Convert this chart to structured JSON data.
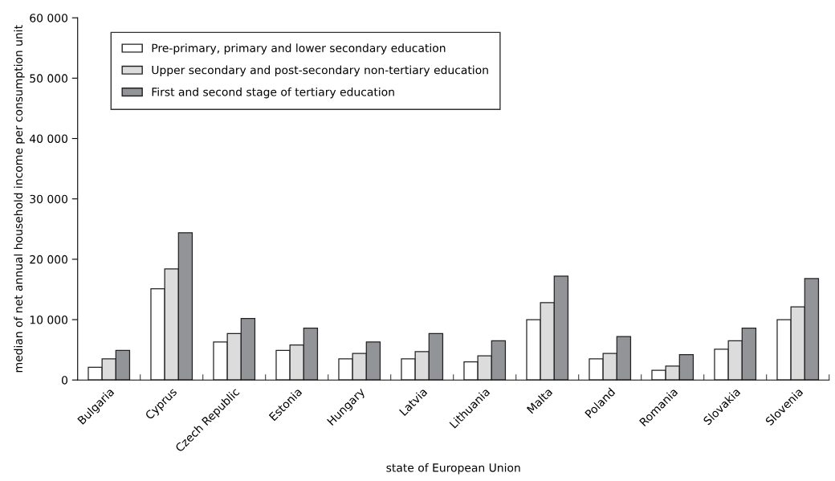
{
  "chart_data": {
    "type": "bar",
    "categories": [
      "Bulgaria",
      "Cyprus",
      "Czech Republic",
      "Estonia",
      "Hungary",
      "Latvia",
      "Lithuania",
      "Malta",
      "Poland",
      "Romania",
      "Slovakia",
      "Slovenia"
    ],
    "series": [
      {
        "name": "Pre-primary, primary and lower secondary education",
        "color": "#ffffff",
        "values": [
          2100,
          15100,
          6300,
          4900,
          3500,
          3500,
          3000,
          10000,
          3500,
          1600,
          5100,
          10000
        ]
      },
      {
        "name": "Upper secondary and post-secondary non-tertiary education",
        "color": "#dcdcdc",
        "values": [
          3500,
          18400,
          7700,
          5800,
          4400,
          4700,
          4000,
          12800,
          4400,
          2300,
          6500,
          12100
        ]
      },
      {
        "name": "First and second stage of tertiary education",
        "color": "#939498",
        "values": [
          4900,
          24400,
          10200,
          8600,
          6300,
          7700,
          6500,
          17200,
          7200,
          4200,
          8600,
          16800
        ]
      }
    ],
    "xlabel": "state of European Union",
    "ylabel": "median of net annual household income per consumption unit",
    "ylim": [
      0,
      60000
    ],
    "yticks": [
      {
        "value": 0,
        "label": "0"
      },
      {
        "value": 10000,
        "label": "10 000"
      },
      {
        "value": 20000,
        "label": "20 000"
      },
      {
        "value": 30000,
        "label": "30 000"
      },
      {
        "value": 40000,
        "label": "40 000"
      },
      {
        "value": 50000,
        "label": "50 000"
      },
      {
        "value": 60000,
        "label": "60 000"
      }
    ],
    "grid": false,
    "legend": "top left"
  }
}
